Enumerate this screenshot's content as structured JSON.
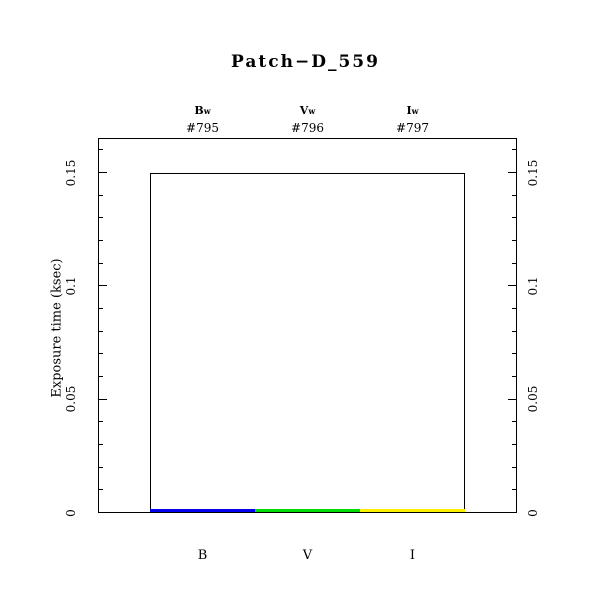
{
  "title": "Patch−D_559",
  "y_axis": {
    "label": "Exposure time (ksec)",
    "tick_labels": [
      "0",
      "0.05",
      "0.1",
      "0.15"
    ],
    "tick_values": [
      0,
      0.05,
      0.1,
      0.15
    ],
    "minor_tick_step": 0.01,
    "max_value": 0.165
  },
  "filters": [
    {
      "name": "B",
      "name_sub": "w",
      "exposure_id": "#795",
      "band_label": "B",
      "color": "#0000EE"
    },
    {
      "name": "V",
      "name_sub": "w",
      "exposure_id": "#796",
      "band_label": "V",
      "color": "#00DB00"
    },
    {
      "name": "I",
      "name_sub": "w",
      "exposure_id": "#797",
      "band_label": "I",
      "color": "#FFF000"
    }
  ],
  "chart_data": {
    "type": "bar",
    "title": "Patch−D_559",
    "ylabel": "Exposure time (ksec)",
    "categories": [
      "B",
      "V",
      "I"
    ],
    "series": [
      {
        "name": "planned-exposure-outline",
        "values": [
          0.15,
          0.15,
          0.15
        ]
      },
      {
        "name": "completed-exposure-colored",
        "values": [
          0.002,
          0.002,
          0.002
        ]
      }
    ],
    "bar_colors": [
      "#0000EE",
      "#00DB00",
      "#FFF000"
    ],
    "annotations": {
      "filter_names": [
        "Bw",
        "Vw",
        "Iw"
      ],
      "exposure_ids": [
        "#795",
        "#796",
        "#797"
      ]
    },
    "ylim": [
      0,
      0.165
    ],
    "yticks": [
      0,
      0.05,
      0.1,
      0.15
    ],
    "minor_ytick_step": 0.01,
    "grid": false,
    "legend": false
  }
}
